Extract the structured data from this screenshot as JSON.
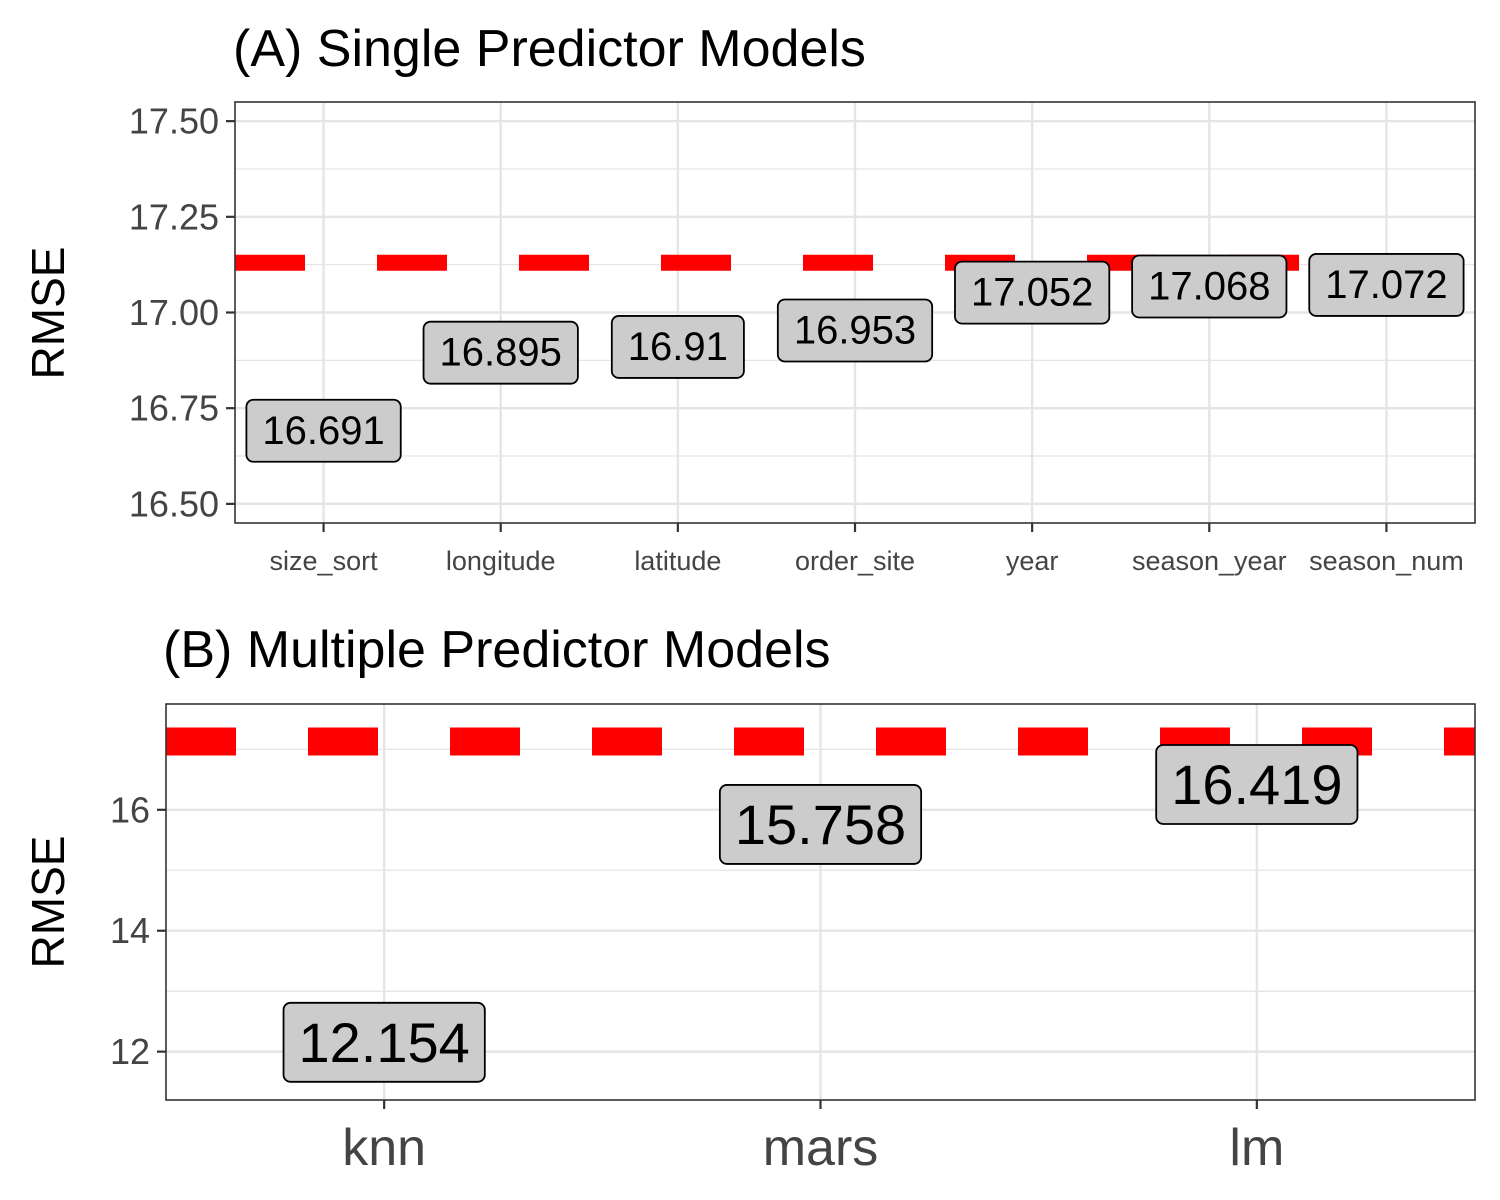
{
  "chart_data": [
    {
      "type": "scatter",
      "title": "(A) Single Predictor Models",
      "xlabel": "",
      "ylabel": "RMSE",
      "categories": [
        "size_sort",
        "longitude",
        "latitude",
        "order_site",
        "year",
        "season_year",
        "season_num"
      ],
      "values": [
        16.691,
        16.895,
        16.91,
        16.953,
        17.052,
        17.068,
        17.072
      ],
      "labels": [
        "16.691",
        "16.895",
        "16.91",
        "16.953",
        "17.052",
        "17.068",
        "17.072"
      ],
      "reference_line": {
        "value": 17.13,
        "style": "dashed",
        "color": "#ff0000"
      },
      "yticks": [
        "16.50",
        "16.75",
        "17.00",
        "17.25",
        "17.50"
      ],
      "ylim": [
        16.45,
        17.55
      ],
      "grid": true
    },
    {
      "type": "scatter",
      "title": "(B) Multiple Predictor Models",
      "xlabel": "",
      "ylabel": "RMSE",
      "categories": [
        "knn",
        "mars",
        "lm"
      ],
      "values": [
        12.154,
        15.758,
        16.419
      ],
      "labels": [
        "12.154",
        "15.758",
        "16.419"
      ],
      "reference_line": {
        "value": 17.13,
        "style": "dashed",
        "color": "#ff0000"
      },
      "yticks": [
        "12",
        "14",
        "16"
      ],
      "ylim": [
        11.2,
        17.75
      ],
      "grid": true
    }
  ],
  "colors": {
    "reference_line": "#ff0000",
    "label_fill": "#cccccc",
    "grid": "#e5e5e5",
    "panel_border": "#333333"
  }
}
